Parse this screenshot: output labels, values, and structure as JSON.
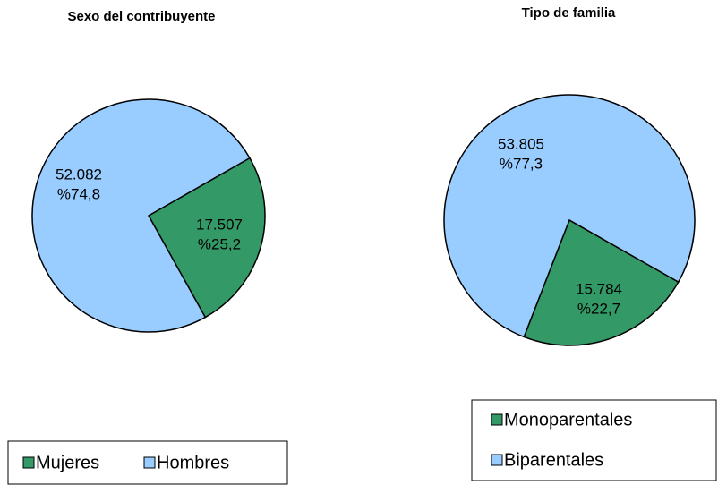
{
  "chart_data": [
    {
      "type": "pie",
      "title": "Sexo del contribuyente",
      "categories": [
        "Mujeres",
        "Hombres"
      ],
      "values": [
        17507,
        52082
      ],
      "value_labels": [
        "17.507",
        "52.082"
      ],
      "percentages": [
        25.2,
        74.8
      ],
      "percentage_labels": [
        "%25,2",
        "%74,8"
      ],
      "colors": [
        "#339966",
        "#99ccff"
      ],
      "legend": "bottom"
    },
    {
      "type": "pie",
      "title": "Tipo de familia",
      "categories": [
        "Monoparentales",
        "Biparentales"
      ],
      "values": [
        15784,
        53805
      ],
      "value_labels": [
        "15.784",
        "53.805"
      ],
      "percentages": [
        22.7,
        77.3
      ],
      "percentage_labels": [
        "%22,7",
        "%77,3"
      ],
      "colors": [
        "#339966",
        "#99ccff"
      ],
      "legend": "bottom"
    }
  ]
}
